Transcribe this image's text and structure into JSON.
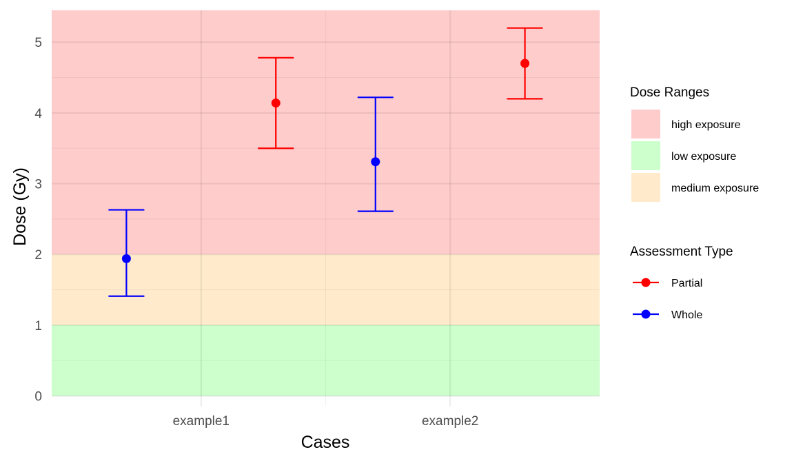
{
  "chart_data": {
    "type": "scatter",
    "title": "",
    "xlabel": "Cases",
    "ylabel": "Dose (Gy)",
    "categories": [
      "example1",
      "example2"
    ],
    "ylim": [
      -0.15,
      5.45
    ],
    "yticks": [
      0,
      1,
      2,
      3,
      4,
      5
    ],
    "grid": true,
    "bands": [
      {
        "label": "low exposure",
        "from": 0,
        "to": 1,
        "color": "#ccffcc"
      },
      {
        "label": "medium exposure",
        "from": 1,
        "to": 2,
        "color": "#ffebcc"
      },
      {
        "label": "high exposure",
        "from": 2,
        "to": 5.45,
        "color": "#ffcccc"
      }
    ],
    "series": [
      {
        "name": "Whole",
        "color": "#0000ff",
        "offset": -0.3,
        "points": [
          {
            "x": "example1",
            "y": 1.94,
            "lower": 1.41,
            "upper": 2.63
          },
          {
            "x": "example2",
            "y": 3.31,
            "lower": 2.61,
            "upper": 4.22
          }
        ]
      },
      {
        "name": "Partial",
        "color": "#ff0000",
        "offset": 0.3,
        "points": [
          {
            "x": "example1",
            "y": 4.14,
            "lower": 3.5,
            "upper": 4.78
          },
          {
            "x": "example2",
            "y": 4.7,
            "lower": 4.2,
            "upper": 5.2
          }
        ]
      }
    ],
    "legends": [
      {
        "title": "Dose Ranges",
        "items": [
          {
            "label": "high exposure",
            "color": "#ffcccc"
          },
          {
            "label": "low exposure",
            "color": "#ccffcc"
          },
          {
            "label": "medium exposure",
            "color": "#ffebcc"
          }
        ]
      },
      {
        "title": "Assessment Type",
        "items": [
          {
            "label": "Partial",
            "color": "#ff0000"
          },
          {
            "label": "Whole",
            "color": "#0000ff"
          }
        ]
      }
    ],
    "legend_position": "right"
  }
}
